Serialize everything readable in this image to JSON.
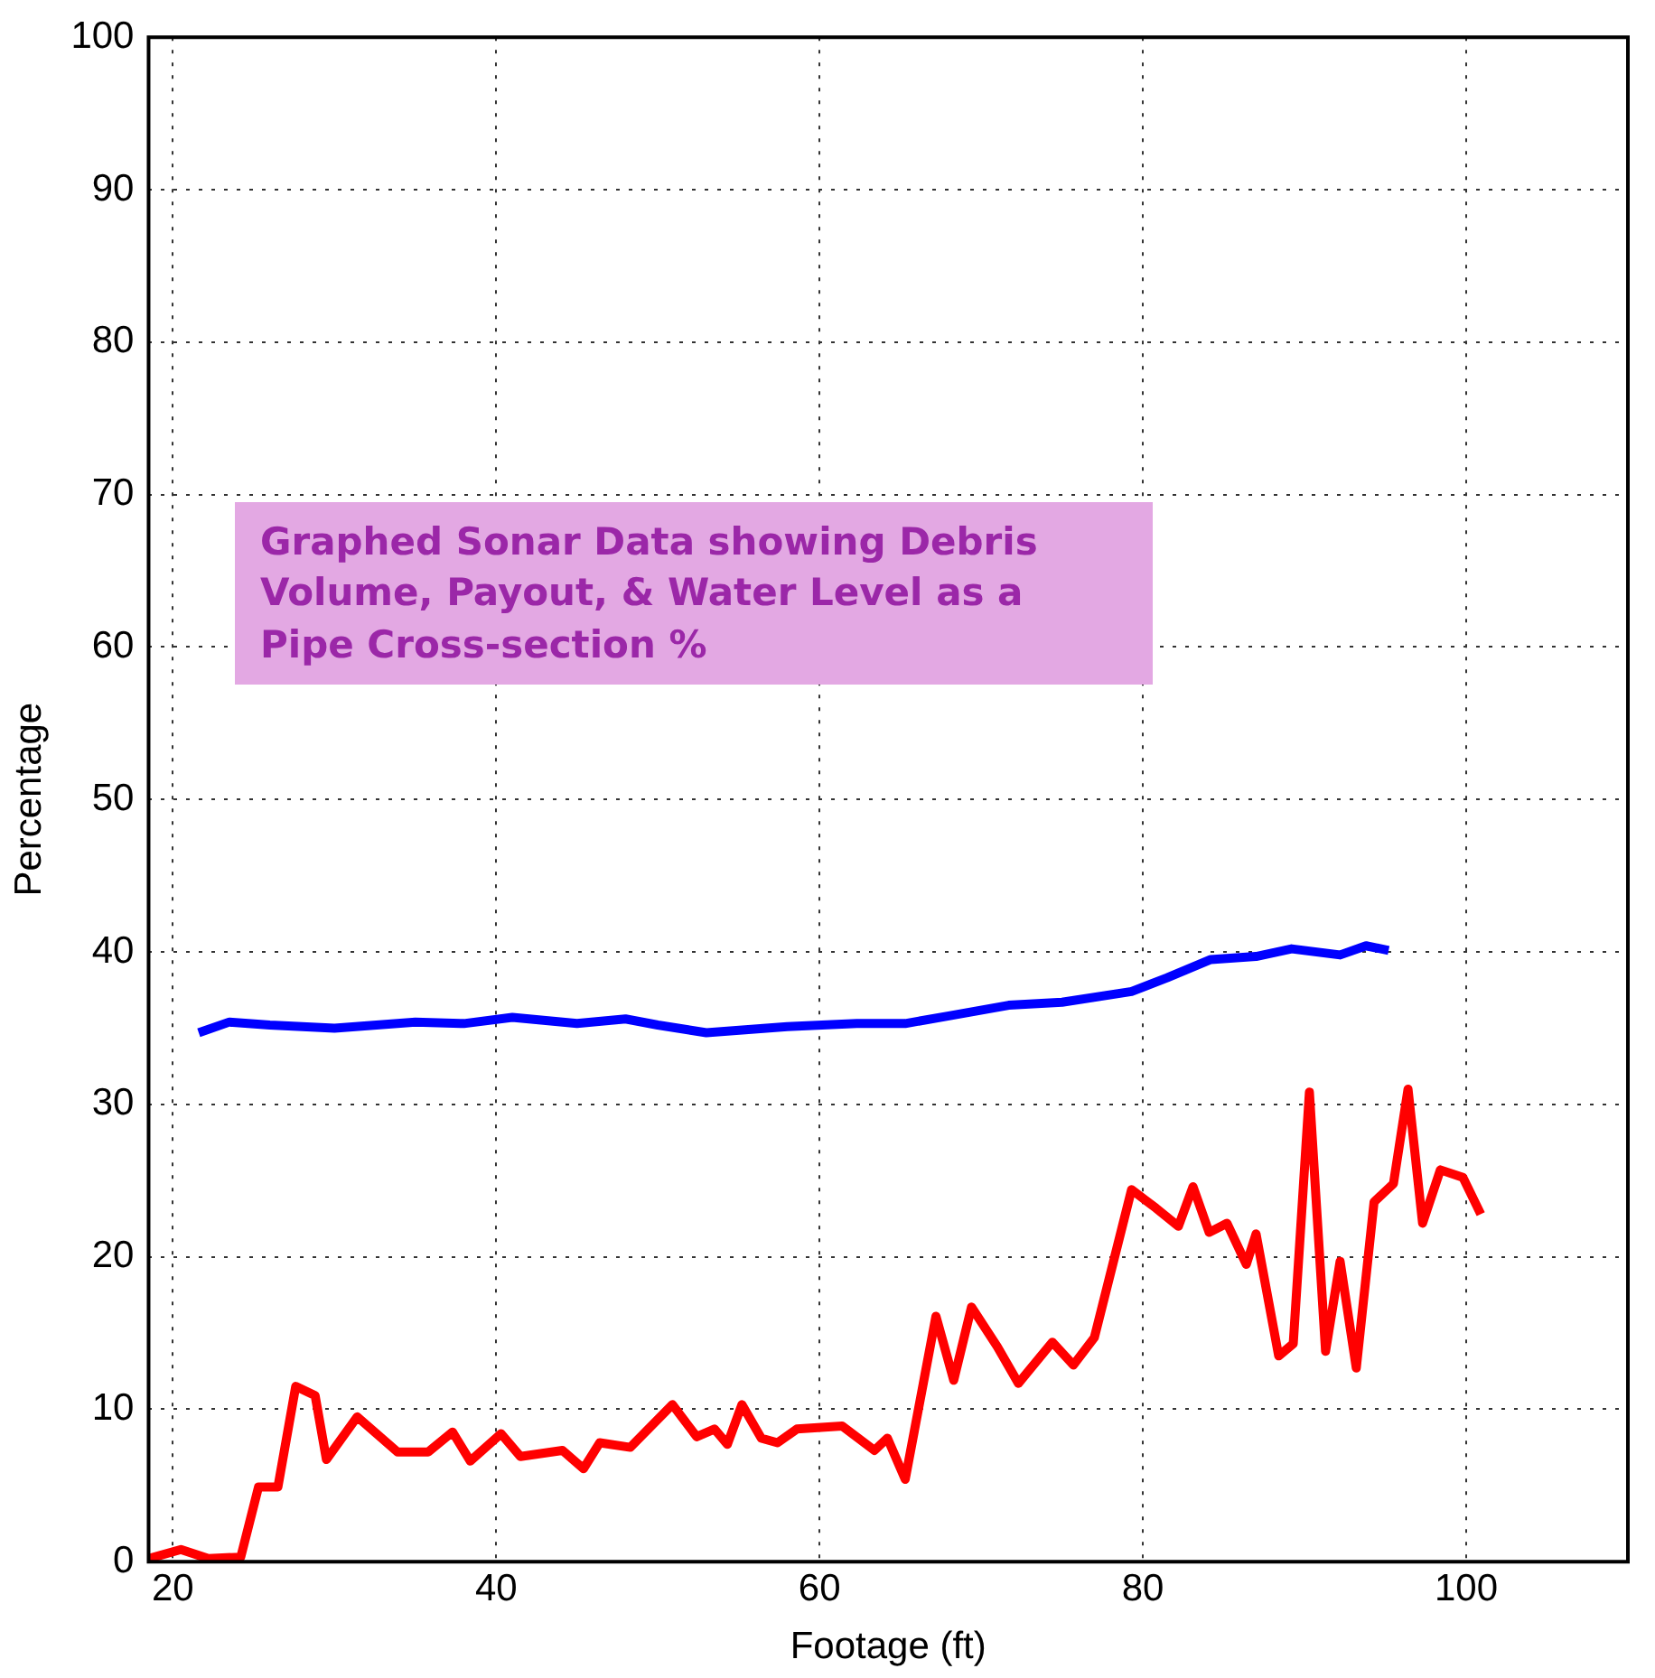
{
  "chart_data": {
    "type": "line",
    "xlabel": "Footage (ft)",
    "ylabel": "Percentage",
    "annotations": [
      "Graphed Sonar Data showing Debris Volume, Payout, & Water Level as a Pipe Cross-section %"
    ],
    "xlim": [
      18.5,
      110
    ],
    "xticks": [
      20,
      40,
      60,
      80,
      100
    ],
    "ylim": [
      0,
      100
    ],
    "yticks": [
      0,
      10,
      20,
      30,
      40,
      50,
      60,
      70,
      80,
      90,
      100
    ],
    "grid": true,
    "line_style": "solid",
    "marker": "none",
    "legend": false,
    "series": [
      {
        "color": "#0000ff",
        "x": [
          21.6,
          23.5,
          26,
          30,
          35,
          38,
          41,
          45,
          48,
          50,
          53,
          58,
          62.3,
          65.3,
          68,
          71.7,
          75,
          79.3,
          81.5,
          84.2,
          87,
          89.2,
          92.2,
          93.8,
          95.2
        ],
        "values": [
          34.7,
          35.4,
          35.2,
          35.0,
          35.4,
          35.3,
          35.7,
          35.3,
          35.6,
          35.2,
          34.7,
          35.1,
          35.3,
          35.3,
          35.8,
          36.5,
          36.7,
          37.4,
          38.3,
          39.5,
          39.7,
          40.2,
          39.8,
          40.4,
          40.1
        ]
      },
      {
        "color": "#ff0000",
        "x": [
          18.5,
          20.5,
          22.2,
          24.2,
          25.3,
          26.5,
          27.6,
          28.8,
          29.5,
          31.4,
          33.9,
          35.8,
          37.3,
          38.4,
          40.3,
          41.5,
          44.1,
          45.4,
          46.4,
          48.3,
          50.9,
          52.4,
          53.5,
          54.3,
          55.2,
          56.4,
          57.4,
          58.6,
          61.4,
          63.4,
          64.2,
          65.3,
          67.2,
          68.3,
          69.4,
          71.0,
          72.3,
          74.4,
          75.7,
          77.0,
          79.3,
          80.8,
          82.2,
          83.1,
          84.1,
          85.2,
          86.4,
          87.0,
          88.4,
          89.3,
          90.3,
          91.3,
          92.2,
          93.2,
          94.3,
          95.5,
          96.4,
          97.3,
          98.4,
          99.8,
          100.9
        ],
        "values": [
          0.2,
          0.8,
          0.2,
          0.3,
          4.9,
          4.9,
          11.5,
          10.9,
          6.7,
          9.5,
          7.2,
          7.2,
          8.5,
          6.6,
          8.4,
          6.9,
          7.3,
          6.1,
          7.8,
          7.5,
          10.3,
          8.2,
          8.7,
          7.7,
          10.3,
          8.1,
          7.8,
          8.7,
          8.9,
          7.3,
          8.1,
          5.4,
          16.1,
          11.9,
          16.7,
          14.1,
          11.7,
          14.4,
          12.9,
          14.7,
          24.4,
          23.2,
          22.0,
          24.6,
          21.6,
          22.2,
          19.5,
          21.5,
          13.5,
          14.3,
          30.8,
          13.8,
          19.7,
          12.7,
          23.6,
          24.8,
          31.0,
          22.2,
          25.7,
          25.2,
          22.8
        ]
      }
    ]
  }
}
